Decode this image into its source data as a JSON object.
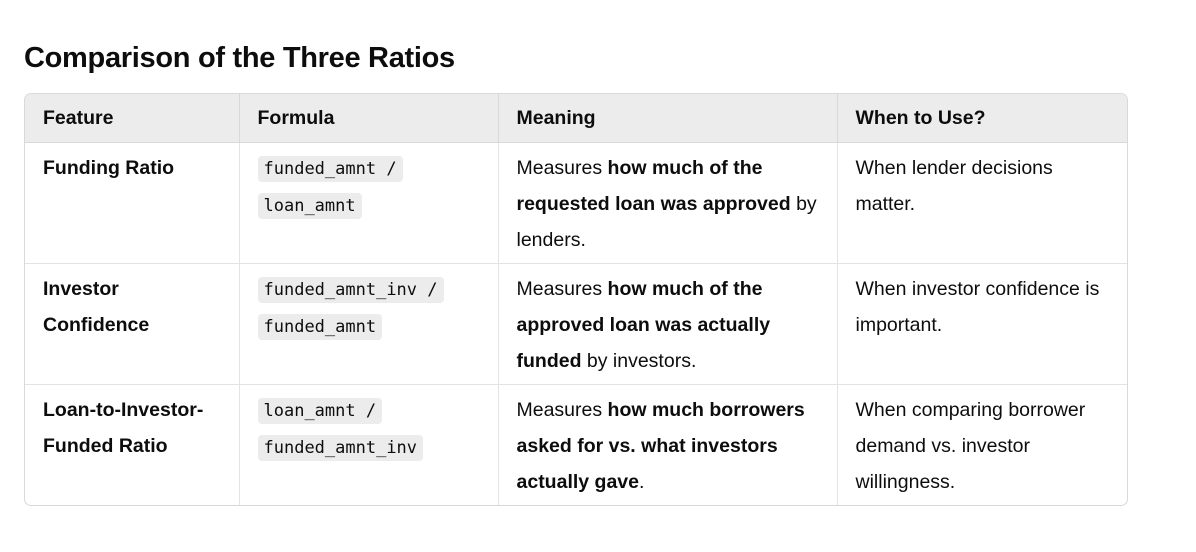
{
  "heading": "Comparison of the Three Ratios",
  "table": {
    "headers": [
      "Feature",
      "Formula",
      "Meaning",
      "When to Use?"
    ],
    "rows": [
      {
        "feature": "Funding Ratio",
        "formula": "funded_amnt / loan_amnt",
        "meaning": {
          "pre": "Measures ",
          "bold": "how much of the requested loan was approved",
          "post": " by lenders."
        },
        "when": "When lender decisions matter."
      },
      {
        "feature": "Investor Confidence",
        "formula": "funded_amnt_inv / funded_amnt",
        "meaning": {
          "pre": "Measures ",
          "bold": "how much of the approved loan was actually funded",
          "post": " by investors."
        },
        "when": "When investor confidence is important."
      },
      {
        "feature": "Loan-to-Investor-Funded Ratio",
        "formula": "loan_amnt / funded_amnt_inv",
        "meaning": {
          "pre": "Measures ",
          "bold": "how much borrowers asked for vs. what investors actually gave",
          "post": "."
        },
        "when": "When comparing borrower demand vs. investor willingness."
      }
    ]
  }
}
